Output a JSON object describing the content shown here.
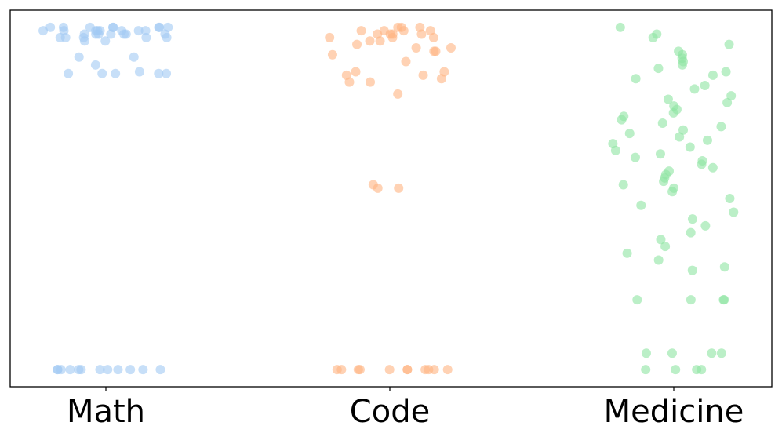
{
  "chart_data": {
    "type": "strip",
    "categories": [
      "Math",
      "Code",
      "Medicine"
    ],
    "colors": [
      "#a1c9f4",
      "#ffb482",
      "#8de5a1"
    ],
    "ylim": [
      -0.05,
      1.05
    ],
    "values": [
      [
        1,
        1,
        1,
        1,
        0.99,
        0.99,
        0.99,
        0.98,
        0.98,
        0.98,
        0.97,
        0.97,
        1,
        0.99,
        0.98,
        1,
        0.99,
        0.98,
        0.97,
        0.99,
        1,
        0.98,
        0.99,
        0.97,
        0.96,
        0.96,
        0.99,
        1,
        0.98,
        0.97,
        0.913,
        0.913,
        0.89,
        0.865,
        0.865,
        0.865,
        0.865,
        0.865,
        0.87,
        0,
        0,
        0,
        0,
        0,
        0,
        0,
        0,
        0,
        0,
        0,
        0
      ],
      [
        1,
        1,
        0.99,
        0.99,
        0.99,
        0.98,
        0.98,
        0.98,
        0.97,
        0.97,
        1,
        0.99,
        0.98,
        0.97,
        0.96,
        0.96,
        0.95,
        0.94,
        0.94,
        0.93,
        0.93,
        0.92,
        0.9,
        0.87,
        0.87,
        0.86,
        0.86,
        0.85,
        0.84,
        0.84,
        0.805,
        0.54,
        0.53,
        0.53,
        0,
        0,
        0,
        0,
        0,
        0,
        0,
        0,
        0,
        0,
        0
      ],
      [
        1,
        0.98,
        0.97,
        0.95,
        0.93,
        0.92,
        0.91,
        0.9,
        0.89,
        0.88,
        0.87,
        0.86,
        0.85,
        0.83,
        0.82,
        0.8,
        0.79,
        0.78,
        0.77,
        0.76,
        0.75,
        0.74,
        0.73,
        0.72,
        0.71,
        0.7,
        0.69,
        0.68,
        0.67,
        0.66,
        0.65,
        0.64,
        0.63,
        0.62,
        0.61,
        0.6,
        0.59,
        0.58,
        0.57,
        0.56,
        0.55,
        0.54,
        0.53,
        0.52,
        0.5,
        0.48,
        0.46,
        0.44,
        0.42,
        0.4,
        0.38,
        0.36,
        0.34,
        0.32,
        0.29,
        0.3,
        0.204,
        0.204,
        0.204,
        0.204,
        0.048,
        0.048,
        0.048,
        0.048,
        0,
        0,
        0,
        0
      ]
    ]
  }
}
